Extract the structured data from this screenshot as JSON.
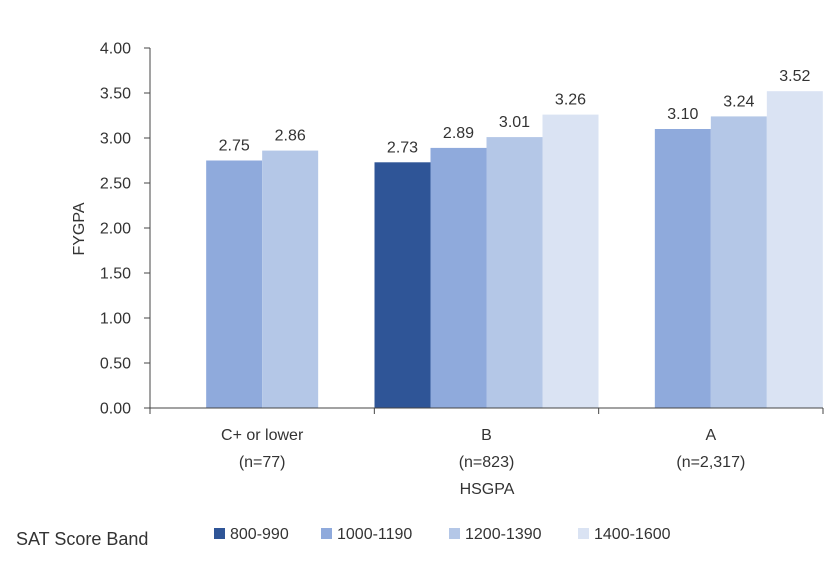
{
  "chart_data": {
    "type": "bar",
    "title": "",
    "xlabel": "HSGPA",
    "ylabel": "FYGPA",
    "ylim": [
      0,
      4
    ],
    "yticks": [
      "0.00",
      "0.50",
      "1.00",
      "1.50",
      "2.00",
      "2.50",
      "3.00",
      "3.50",
      "4.00"
    ],
    "categories": [
      {
        "label": "C+ or lower",
        "n": "(n=77)"
      },
      {
        "label": "B",
        "n": "(n=823)"
      },
      {
        "label": "A",
        "n": "(n=2,317)"
      }
    ],
    "legend_title": "SAT Score Band",
    "series": [
      {
        "name": "800-990",
        "color": "#2f5597",
        "values": [
          null,
          2.73,
          null
        ],
        "labels": [
          "",
          "2.73",
          ""
        ]
      },
      {
        "name": "1000-1190",
        "color": "#8faadc",
        "values": [
          2.75,
          2.89,
          3.1
        ],
        "labels": [
          "2.75",
          "2.89",
          "3.10"
        ]
      },
      {
        "name": "1200-1390",
        "color": "#b4c7e7",
        "values": [
          2.86,
          3.01,
          3.24
        ],
        "labels": [
          "2.86",
          "3.01",
          "3.24"
        ]
      },
      {
        "name": "1400-1600",
        "color": "#dae3f3",
        "values": [
          null,
          3.26,
          3.52
        ],
        "labels": [
          "",
          "3.26",
          "3.52"
        ]
      }
    ]
  }
}
